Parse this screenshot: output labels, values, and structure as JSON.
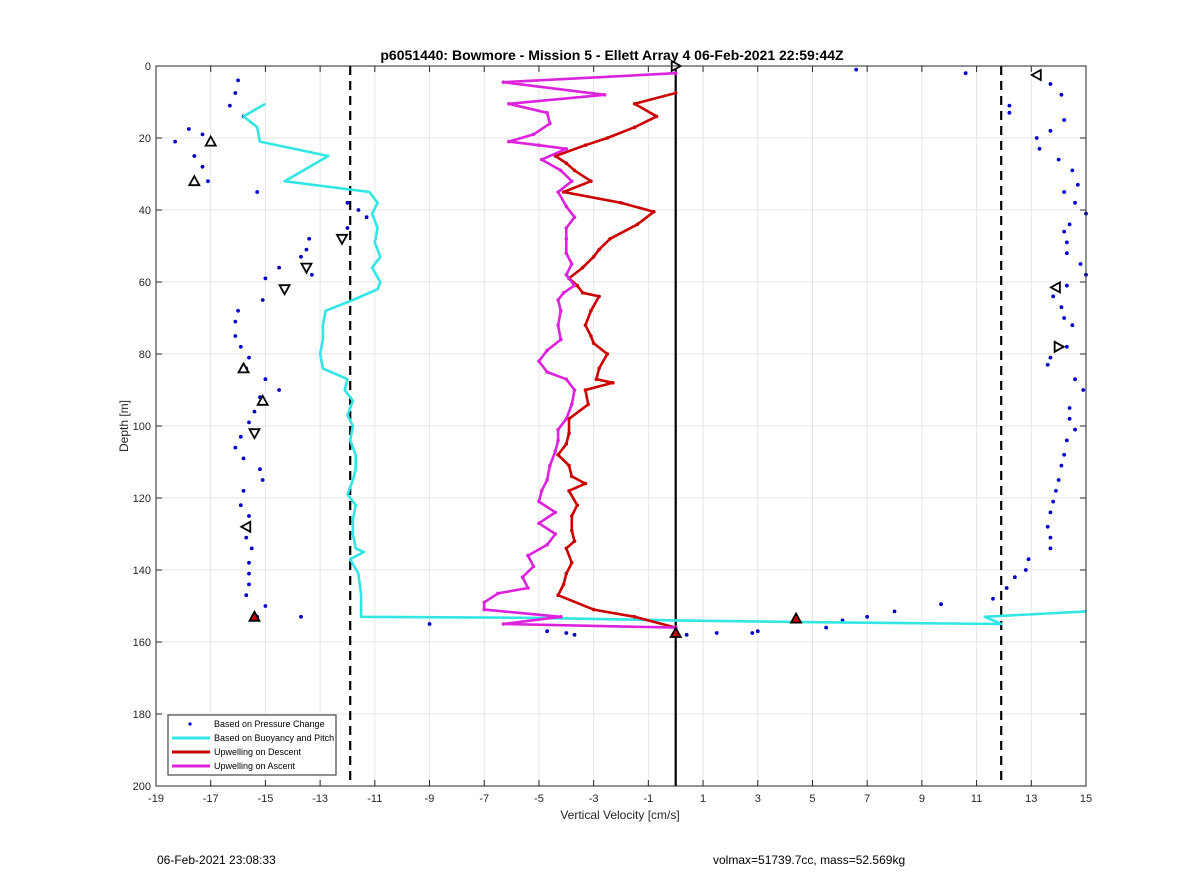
{
  "chart_data": {
    "type": "line",
    "title": "p6051440: Bowmore - Mission 5 - Ellett Array 4 06-Feb-2021 22:59:44Z",
    "xlabel": "Vertical Velocity [cm/s]",
    "ylabel": "Depth [m]",
    "xlim": [
      -19,
      15
    ],
    "ylim": [
      0,
      200
    ],
    "y_reversed": true,
    "grid": true,
    "legend_position": "bottom-left",
    "x_ticks": [
      -19,
      -17,
      -15,
      -13,
      -11,
      -9,
      -7,
      -5,
      -3,
      -1,
      1,
      3,
      5,
      7,
      9,
      11,
      13,
      15
    ],
    "y_ticks": [
      0,
      20,
      40,
      60,
      80,
      100,
      120,
      140,
      160,
      180,
      200
    ],
    "reference_lines": [
      {
        "x": 0,
        "style": "solid",
        "color": "#000000"
      },
      {
        "x": -11.9,
        "style": "dashed",
        "color": "#000000"
      },
      {
        "x": 11.9,
        "style": "dashed",
        "color": "#000000"
      }
    ],
    "series": [
      {
        "name": "Based on Pressure Change",
        "kind": "scatter",
        "color": "#0000cc",
        "points": [
          [
            -16.0,
            4
          ],
          [
            -16.1,
            7.5
          ],
          [
            -16.3,
            11
          ],
          [
            -15.8,
            14
          ],
          [
            -17.8,
            17.5
          ],
          [
            -17.3,
            19
          ],
          [
            -18.3,
            21
          ],
          [
            -17.6,
            25
          ],
          [
            -17.3,
            28
          ],
          [
            -17.1,
            32
          ],
          [
            -15.3,
            35
          ],
          [
            -12.0,
            38
          ],
          [
            -11.6,
            40
          ],
          [
            -11.3,
            42
          ],
          [
            -12.0,
            45
          ],
          [
            -13.4,
            48
          ],
          [
            -13.5,
            51
          ],
          [
            -13.7,
            53
          ],
          [
            -14.5,
            56
          ],
          [
            -13.3,
            58
          ],
          [
            -15.0,
            59
          ],
          [
            -14.3,
            62
          ],
          [
            -15.1,
            65
          ],
          [
            -16.0,
            68
          ],
          [
            -16.1,
            71
          ],
          [
            -16.1,
            75
          ],
          [
            -15.9,
            78
          ],
          [
            -15.6,
            81
          ],
          [
            -15.7,
            84
          ],
          [
            -15.0,
            87
          ],
          [
            -14.5,
            90
          ],
          [
            -15.2,
            92
          ],
          [
            -15.4,
            96
          ],
          [
            -15.6,
            99
          ],
          [
            -15.9,
            103
          ],
          [
            -16.1,
            106
          ],
          [
            -15.8,
            109
          ],
          [
            -15.2,
            112
          ],
          [
            -15.1,
            115
          ],
          [
            -15.8,
            118
          ],
          [
            -15.9,
            122
          ],
          [
            -15.6,
            125
          ],
          [
            -15.7,
            131
          ],
          [
            -15.5,
            134
          ],
          [
            -15.6,
            138
          ],
          [
            -15.6,
            141
          ],
          [
            -15.6,
            144
          ],
          [
            -15.7,
            147
          ],
          [
            -15.0,
            150
          ],
          [
            -15.3,
            153
          ],
          [
            -13.7,
            153
          ],
          [
            -9.0,
            155
          ],
          [
            -4.7,
            157
          ],
          [
            -4.0,
            157.5
          ],
          [
            -3.7,
            158
          ],
          [
            0.0,
            157
          ],
          [
            0.4,
            158
          ],
          [
            1.5,
            157.5
          ],
          [
            2.8,
            157.5
          ],
          [
            3.0,
            157
          ],
          [
            5.5,
            156
          ],
          [
            6.1,
            154
          ],
          [
            7.0,
            153
          ],
          [
            8.0,
            151.5
          ],
          [
            9.7,
            149.5
          ],
          [
            11.6,
            148
          ],
          [
            12.1,
            145
          ],
          [
            12.4,
            142
          ],
          [
            12.8,
            140
          ],
          [
            12.9,
            137
          ],
          [
            13.7,
            134
          ],
          [
            13.7,
            131
          ],
          [
            13.6,
            128
          ],
          [
            13.7,
            124
          ],
          [
            13.8,
            121
          ],
          [
            13.9,
            118
          ],
          [
            14.0,
            115
          ],
          [
            14.1,
            111
          ],
          [
            14.2,
            108
          ],
          [
            14.3,
            104
          ],
          [
            14.6,
            101
          ],
          [
            14.4,
            98
          ],
          [
            14.4,
            95
          ],
          [
            14.9,
            90
          ],
          [
            14.6,
            87
          ],
          [
            13.6,
            83
          ],
          [
            13.7,
            81
          ],
          [
            14.3,
            78
          ],
          [
            14.5,
            72
          ],
          [
            14.2,
            70
          ],
          [
            14.1,
            67
          ],
          [
            13.8,
            64
          ],
          [
            14.3,
            61
          ],
          [
            15.0,
            58
          ],
          [
            14.8,
            55
          ],
          [
            14.3,
            52
          ],
          [
            14.3,
            49
          ],
          [
            14.2,
            46
          ],
          [
            14.4,
            44
          ],
          [
            15.0,
            41
          ],
          [
            14.6,
            38
          ],
          [
            14.2,
            35
          ],
          [
            14.7,
            33
          ],
          [
            14.5,
            29
          ],
          [
            14.0,
            26
          ],
          [
            13.3,
            23
          ],
          [
            13.2,
            20
          ],
          [
            13.7,
            18
          ],
          [
            14.2,
            15
          ],
          [
            12.2,
            13
          ],
          [
            12.2,
            11
          ],
          [
            14.1,
            8
          ],
          [
            13.7,
            5
          ],
          [
            10.6,
            2
          ],
          [
            6.6,
            1
          ]
        ]
      },
      {
        "name": "Based on Buoyancy and Pitch",
        "kind": "line",
        "color": "#33e6e6",
        "points": [
          [
            -15.0,
            10.5
          ],
          [
            -15.8,
            14
          ],
          [
            -15.3,
            17
          ],
          [
            -15.2,
            21
          ],
          [
            -12.7,
            25
          ],
          [
            -14.3,
            32
          ],
          [
            -11.2,
            35
          ],
          [
            -10.9,
            38
          ],
          [
            -11.1,
            41
          ],
          [
            -10.9,
            45
          ],
          [
            -11.0,
            49
          ],
          [
            -10.8,
            53
          ],
          [
            -11.1,
            56
          ],
          [
            -10.8,
            60
          ],
          [
            -10.9,
            62
          ],
          [
            -11.8,
            65
          ],
          [
            -12.8,
            68
          ],
          [
            -12.9,
            72
          ],
          [
            -12.9,
            76
          ],
          [
            -13.0,
            80
          ],
          [
            -12.9,
            84
          ],
          [
            -12.0,
            87
          ],
          [
            -12.1,
            90
          ],
          [
            -11.8,
            93
          ],
          [
            -12.0,
            97
          ],
          [
            -11.8,
            100
          ],
          [
            -11.9,
            104
          ],
          [
            -11.7,
            108
          ],
          [
            -11.7,
            112
          ],
          [
            -11.8,
            115
          ],
          [
            -12.0,
            119
          ],
          [
            -11.7,
            122
          ],
          [
            -11.8,
            126
          ],
          [
            -11.8,
            130
          ],
          [
            -11.7,
            134
          ],
          [
            -11.4,
            135
          ],
          [
            -11.9,
            137
          ],
          [
            -11.6,
            141
          ],
          [
            -11.5,
            147
          ],
          [
            -11.5,
            153
          ],
          [
            -5.0,
            153.3
          ],
          [
            0.0,
            154
          ],
          [
            5.0,
            154.5
          ],
          [
            11.9,
            155
          ],
          [
            11.3,
            153
          ],
          [
            15.0,
            151.5
          ]
        ]
      },
      {
        "name": "Upwelling on Descent",
        "kind": "line",
        "color": "#cc0000",
        "markers": true,
        "points": [
          [
            0.0,
            7.5
          ],
          [
            -1.5,
            10.5
          ],
          [
            -0.7,
            14
          ],
          [
            -1.5,
            17
          ],
          [
            -2.5,
            20
          ],
          [
            -3.3,
            22
          ],
          [
            -4.4,
            25
          ],
          [
            -4.0,
            27
          ],
          [
            -3.7,
            29
          ],
          [
            -3.1,
            32
          ],
          [
            -4.1,
            35
          ],
          [
            -2.0,
            38
          ],
          [
            -0.8,
            40.5
          ],
          [
            -1.4,
            44
          ],
          [
            -2.4,
            48
          ],
          [
            -2.8,
            51
          ],
          [
            -3.0,
            53
          ],
          [
            -3.4,
            56
          ],
          [
            -3.9,
            59
          ],
          [
            -3.6,
            61
          ],
          [
            -3.4,
            63
          ],
          [
            -2.8,
            64
          ],
          [
            -3.1,
            68
          ],
          [
            -3.3,
            72
          ],
          [
            -3.1,
            75
          ],
          [
            -3.0,
            77
          ],
          [
            -2.5,
            80
          ],
          [
            -2.8,
            84
          ],
          [
            -2.9,
            87
          ],
          [
            -2.3,
            88
          ],
          [
            -3.3,
            90
          ],
          [
            -3.2,
            94
          ],
          [
            -3.9,
            98
          ],
          [
            -3.9,
            102
          ],
          [
            -4.0,
            105
          ],
          [
            -4.3,
            108
          ],
          [
            -3.9,
            111
          ],
          [
            -3.8,
            114
          ],
          [
            -3.3,
            116
          ],
          [
            -3.9,
            118
          ],
          [
            -3.6,
            122
          ],
          [
            -3.8,
            125
          ],
          [
            -3.8,
            129
          ],
          [
            -3.7,
            132
          ],
          [
            -4.0,
            134
          ],
          [
            -3.8,
            138
          ],
          [
            -4.0,
            141
          ],
          [
            -4.1,
            144
          ],
          [
            -4.3,
            147
          ],
          [
            -3.0,
            151
          ],
          [
            -1.5,
            153
          ],
          [
            0.0,
            156
          ]
        ]
      },
      {
        "name": "Upwelling on Ascent",
        "kind": "line",
        "color": "#dd22dd",
        "markers": true,
        "points": [
          [
            0.0,
            2
          ],
          [
            -6.3,
            4.5
          ],
          [
            -2.6,
            8
          ],
          [
            -6.1,
            10.5
          ],
          [
            -4.7,
            13
          ],
          [
            -4.6,
            16
          ],
          [
            -5.2,
            19
          ],
          [
            -6.1,
            21
          ],
          [
            -5.0,
            22
          ],
          [
            -4.0,
            23
          ],
          [
            -4.9,
            26
          ],
          [
            -4.2,
            29
          ],
          [
            -3.8,
            32
          ],
          [
            -4.3,
            35
          ],
          [
            -4.0,
            39
          ],
          [
            -3.7,
            42
          ],
          [
            -4.0,
            45
          ],
          [
            -4.0,
            48
          ],
          [
            -4.0,
            52
          ],
          [
            -3.8,
            55
          ],
          [
            -4.0,
            58
          ],
          [
            -3.7,
            61
          ],
          [
            -4.1,
            63
          ],
          [
            -4.3,
            65
          ],
          [
            -4.2,
            68
          ],
          [
            -4.3,
            72
          ],
          [
            -4.2,
            76
          ],
          [
            -4.7,
            79
          ],
          [
            -5.0,
            82
          ],
          [
            -4.7,
            85
          ],
          [
            -4.0,
            87
          ],
          [
            -3.7,
            90
          ],
          [
            -3.8,
            94
          ],
          [
            -4.0,
            98
          ],
          [
            -4.3,
            101
          ],
          [
            -4.3,
            104
          ],
          [
            -4.4,
            107
          ],
          [
            -4.6,
            111
          ],
          [
            -4.7,
            115
          ],
          [
            -4.9,
            118
          ],
          [
            -5.0,
            121
          ],
          [
            -4.4,
            124
          ],
          [
            -5.0,
            127
          ],
          [
            -4.4,
            130
          ],
          [
            -4.7,
            133
          ],
          [
            -5.4,
            136
          ],
          [
            -5.2,
            139
          ],
          [
            -5.6,
            142
          ],
          [
            -5.4,
            145
          ],
          [
            -6.5,
            146.5
          ],
          [
            -7.0,
            149
          ],
          [
            -7.0,
            151
          ],
          [
            -4.2,
            153
          ],
          [
            -6.3,
            155
          ],
          [
            0.0,
            156
          ]
        ]
      }
    ],
    "triangle_markers": [
      {
        "x": 0.0,
        "y": 0,
        "dir": "right"
      },
      {
        "x": 13.2,
        "y": 2.5,
        "dir": "left"
      },
      {
        "x": -17.0,
        "y": 21,
        "dir": "up"
      },
      {
        "x": -17.6,
        "y": 32,
        "dir": "up"
      },
      {
        "x": -12.2,
        "y": 48,
        "dir": "down"
      },
      {
        "x": -13.5,
        "y": 56,
        "dir": "down"
      },
      {
        "x": -14.3,
        "y": 62,
        "dir": "down"
      },
      {
        "x": 13.9,
        "y": 61.5,
        "dir": "left"
      },
      {
        "x": 14.0,
        "y": 78,
        "dir": "right"
      },
      {
        "x": -15.8,
        "y": 84,
        "dir": "up"
      },
      {
        "x": -15.1,
        "y": 93,
        "dir": "up"
      },
      {
        "x": -15.4,
        "y": 102,
        "dir": "down"
      },
      {
        "x": -15.7,
        "y": 128,
        "dir": "left"
      },
      {
        "x": -15.4,
        "y": 153,
        "dir": "up",
        "fill": "#cc0000"
      },
      {
        "x": 4.4,
        "y": 153.5,
        "dir": "up",
        "fill": "#cc0000"
      },
      {
        "x": 0.0,
        "y": 157.5,
        "dir": "up",
        "fill": "#cc0000"
      }
    ]
  },
  "footer": {
    "left_text": "06-Feb-2021 23:08:33",
    "right_text": "volmax=51739.7cc, mass=52.569kg"
  }
}
